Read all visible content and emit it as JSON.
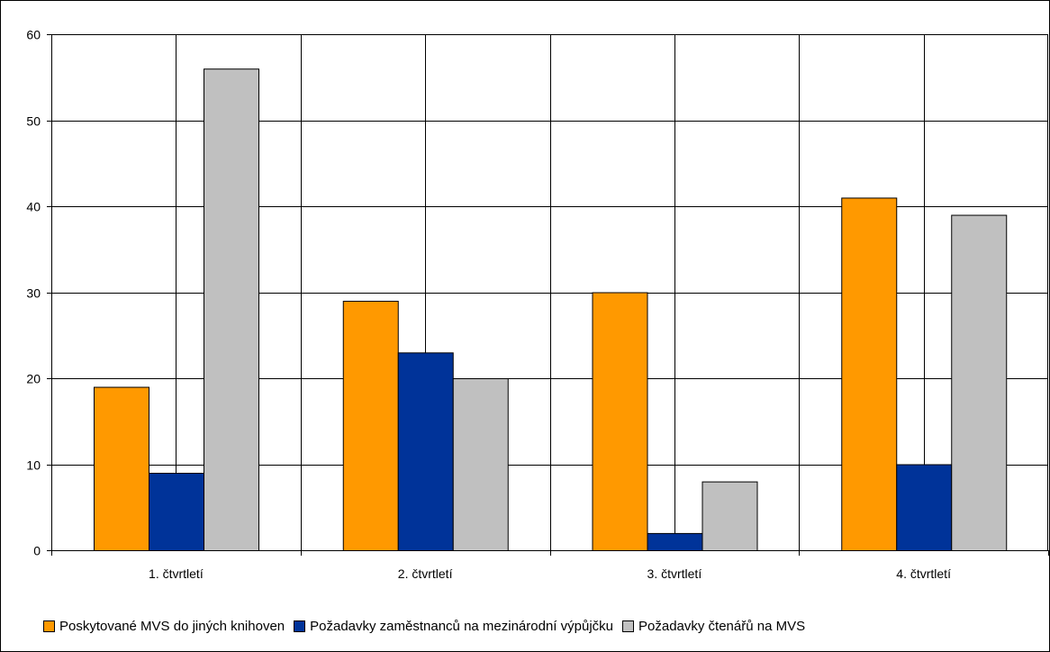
{
  "chart_data": {
    "type": "bar",
    "categories": [
      "1. čtvrtletí",
      "2. čtvrtletí",
      "3. čtvrtletí",
      "4. čtvrtletí"
    ],
    "series": [
      {
        "name": "Poskytované MVS do jiných knihoven",
        "color": "#FF9900",
        "values": [
          19,
          29,
          30,
          41
        ]
      },
      {
        "name": "Požadavky zaměstnanců na mezinárodní výpůjčku",
        "color": "#003399",
        "values": [
          9,
          23,
          2,
          10
        ]
      },
      {
        "name": "Požadavky čtenářů na MVS",
        "color": "#C0C0C0",
        "values": [
          56,
          20,
          8,
          39
        ]
      }
    ],
    "y_ticks": [
      "0",
      "10",
      "20",
      "30",
      "40",
      "50",
      "60"
    ],
    "ylim": [
      0,
      60
    ],
    "grid": true,
    "legend_position": "bottom"
  }
}
